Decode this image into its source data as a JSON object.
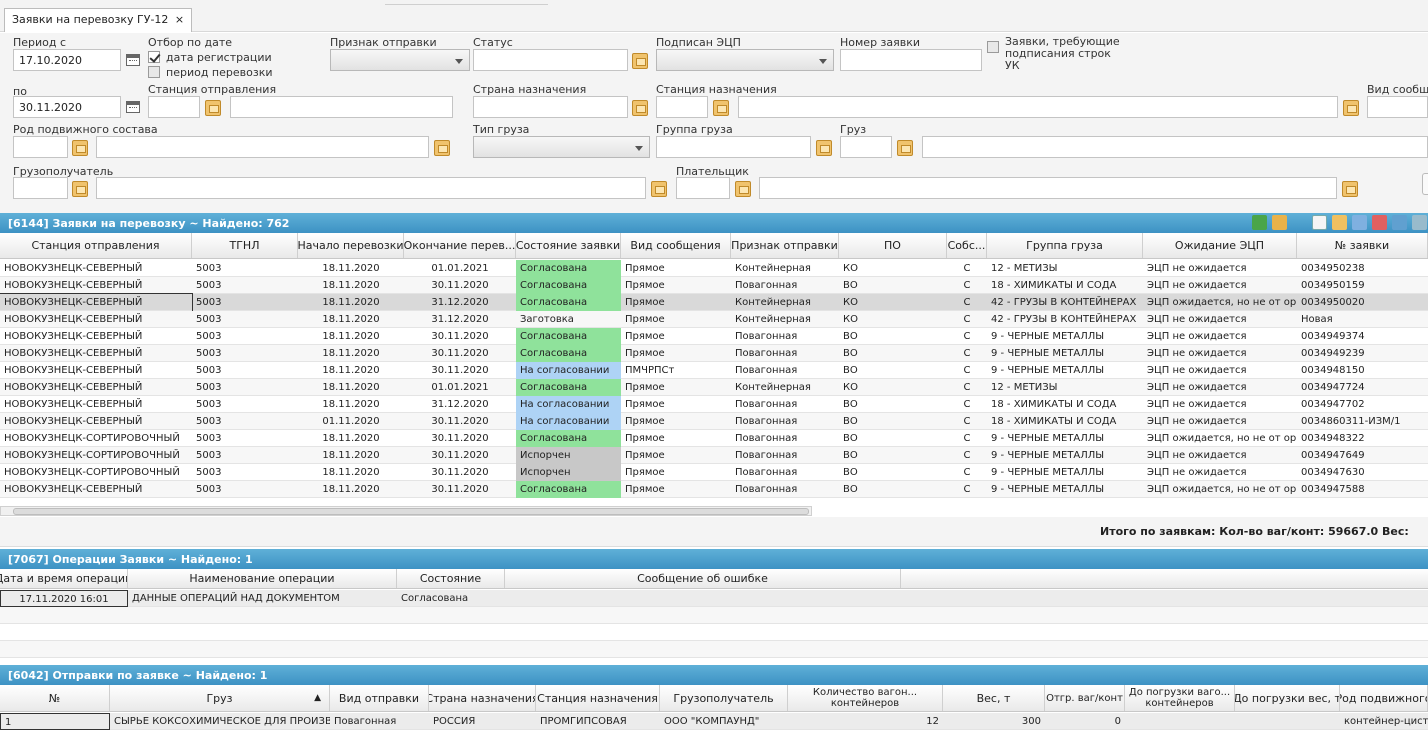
{
  "tab": {
    "title": "Заявки на перевозку ГУ-12",
    "close": "×"
  },
  "filters": {
    "period_from_label": "Период с",
    "period_from": "17.10.2020",
    "period_to_label": "по",
    "period_to": "30.11.2020",
    "date_filter_label": "Отбор по дате",
    "reg_date_label": "дата регистрации",
    "transport_period_label": "период перевозки",
    "send_sign_label": "Признак отправки",
    "status_label": "Статус",
    "signed_label": "Подписан ЭЦП",
    "number_label": "Номер заявки",
    "uk_sign_label": "Заявки, требующие подписания строк УК",
    "dep_station_label": "Станция отправления",
    "dest_country_label": "Страна назначения",
    "dest_station_label": "Станция назначения",
    "msg_type_label": "Вид сообщен",
    "rolling_stock_label": "Род подвижного состава",
    "cargo_type_label": "Тип груза",
    "cargo_group_label": "Группа груза",
    "cargo_label": "Груз",
    "consignee_label": "Грузополучатель",
    "payer_label": "Плательщик"
  },
  "main_grid": {
    "title": "[6144]  Заявки на перевозку ~ Найдено: 762",
    "columns": [
      "Станция отправления",
      "ТГНЛ",
      "Начало перевозки",
      "Окончание перев...",
      "Состояние заявки",
      "Вид сообщения",
      "Признак отправки",
      "ПО",
      "Собс...",
      "Группа груза",
      "Ожидание ЭЦП",
      "№ заявки"
    ],
    "rows": [
      [
        "НОВОКУЗНЕЦК-СЕВЕРНЫЙ",
        "5003",
        "18.11.2020",
        "01.01.2021",
        "Согласована",
        "Прямое",
        "Контейнерная",
        "КО",
        "С",
        "12 - МЕТИЗЫ",
        "ЭЦП не ожидается",
        "0034950238"
      ],
      [
        "НОВОКУЗНЕЦК-СЕВЕРНЫЙ",
        "5003",
        "18.11.2020",
        "30.11.2020",
        "Согласована",
        "Прямое",
        "Повагонная",
        "ВО",
        "С",
        "18 - ХИМИКАТЫ И СОДА",
        "ЭЦП не ожидается",
        "0034950159"
      ],
      [
        "НОВОКУЗНЕЦК-СЕВЕРНЫЙ",
        "5003",
        "18.11.2020",
        "31.12.2020",
        "Согласована",
        "Прямое",
        "Контейнерная",
        "КО",
        "С",
        "42 - ГРУЗЫ В КОНТЕЙНЕРАХ",
        "ЭЦП ожидается, но не от организац...",
        "0034950020"
      ],
      [
        "НОВОКУЗНЕЦК-СЕВЕРНЫЙ",
        "5003",
        "18.11.2020",
        "31.12.2020",
        "Заготовка",
        "Прямое",
        "Контейнерная",
        "КО",
        "С",
        "42 - ГРУЗЫ В КОНТЕЙНЕРАХ",
        "ЭЦП не ожидается",
        "Новая"
      ],
      [
        "НОВОКУЗНЕЦК-СЕВЕРНЫЙ",
        "5003",
        "18.11.2020",
        "30.11.2020",
        "Согласована",
        "Прямое",
        "Повагонная",
        "ВО",
        "С",
        "9 - ЧЕРНЫЕ МЕТАЛЛЫ",
        "ЭЦП не ожидается",
        "0034949374"
      ],
      [
        "НОВОКУЗНЕЦК-СЕВЕРНЫЙ",
        "5003",
        "18.11.2020",
        "30.11.2020",
        "Согласована",
        "Прямое",
        "Повагонная",
        "ВО",
        "С",
        "9 - ЧЕРНЫЕ МЕТАЛЛЫ",
        "ЭЦП не ожидается",
        "0034949239"
      ],
      [
        "НОВОКУЗНЕЦК-СЕВЕРНЫЙ",
        "5003",
        "18.11.2020",
        "30.11.2020",
        "На согласовании",
        "ПМЧРПСт",
        "Повагонная",
        "ВО",
        "С",
        "9 - ЧЕРНЫЕ МЕТАЛЛЫ",
        "ЭЦП не ожидается",
        "0034948150"
      ],
      [
        "НОВОКУЗНЕЦК-СЕВЕРНЫЙ",
        "5003",
        "18.11.2020",
        "01.01.2021",
        "Согласована",
        "Прямое",
        "Контейнерная",
        "КО",
        "С",
        "12 - МЕТИЗЫ",
        "ЭЦП не ожидается",
        "0034947724"
      ],
      [
        "НОВОКУЗНЕЦК-СЕВЕРНЫЙ",
        "5003",
        "18.11.2020",
        "31.12.2020",
        "На согласовании",
        "Прямое",
        "Повагонная",
        "ВО",
        "С",
        "18 - ХИМИКАТЫ И СОДА",
        "ЭЦП не ожидается",
        "0034947702"
      ],
      [
        "НОВОКУЗНЕЦК-СЕВЕРНЫЙ",
        "5003",
        "01.11.2020",
        "30.11.2020",
        "На согласовании",
        "Прямое",
        "Повагонная",
        "ВО",
        "С",
        "18 - ХИМИКАТЫ И СОДА",
        "ЭЦП не ожидается",
        "0034860311-ИЗМ/1"
      ],
      [
        "НОВОКУЗНЕЦК-СОРТИРОВОЧНЫЙ",
        "5003",
        "18.11.2020",
        "30.11.2020",
        "Согласована",
        "Прямое",
        "Повагонная",
        "ВО",
        "С",
        "9 - ЧЕРНЫЕ МЕТАЛЛЫ",
        "ЭЦП ожидается, но не от организац...",
        "0034948322"
      ],
      [
        "НОВОКУЗНЕЦК-СОРТИРОВОЧНЫЙ",
        "5003",
        "18.11.2020",
        "30.11.2020",
        "Испорчен",
        "Прямое",
        "Повагонная",
        "ВО",
        "С",
        "9 - ЧЕРНЫЕ МЕТАЛЛЫ",
        "ЭЦП не ожидается",
        "0034947649"
      ],
      [
        "НОВОКУЗНЕЦК-СОРТИРОВОЧНЫЙ",
        "5003",
        "18.11.2020",
        "30.11.2020",
        "Испорчен",
        "Прямое",
        "Повагонная",
        "ВО",
        "С",
        "9 - ЧЕРНЫЕ МЕТАЛЛЫ",
        "ЭЦП не ожидается",
        "0034947630"
      ],
      [
        "НОВОКУЗНЕЦК-СЕВЕРНЫЙ",
        "5003",
        "18.11.2020",
        "30.11.2020",
        "Согласована",
        "Прямое",
        "Повагонная",
        "ВО",
        "С",
        "9 - ЧЕРНЫЕ МЕТАЛЛЫ",
        "ЭЦП ожидается, но не от организац...",
        "0034947588"
      ]
    ],
    "totals": "Итого по заявкам:  Кол-во ваг/конт: 59667.0 Вес:"
  },
  "ops_grid": {
    "title": "[7067]  Операции Заявки ~ Найдено: 1",
    "columns": [
      "Дата и время операции",
      "Наименование операции",
      "Состояние",
      "Сообщение об ошибке"
    ],
    "rows": [
      [
        "17.11.2020 16:01",
        "ДАННЫЕ ОПЕРАЦИЙ НАД ДОКУМЕНТОМ",
        "Согласована",
        ""
      ]
    ]
  },
  "ship_grid": {
    "title": "[6042]  Отправки по заявке ~ Найдено: 1",
    "columns": [
      "№",
      "Груз",
      "Вид отправки",
      "Страна назначения",
      "Станция назначения",
      "Грузополучатель",
      "Количество вагон... контейнеров",
      "Вес, т",
      "Отгр. ваг/конт",
      "До погрузки ваго... контейнеров",
      "До погрузки вес, т",
      "Род подвижного"
    ],
    "sort_indicator": "▲",
    "rows": [
      [
        "1",
        "СЫРЬЕ КОКСОХИМИЧЕСКОЕ ДЛЯ ПРОИЗВ...",
        "Повагонная",
        "РОССИЯ",
        "ПРОМГИПСОВАЯ",
        "ООО \"КОМПАУНД\"",
        "12",
        "300",
        "0",
        "",
        "",
        "контейнер-цистер"
      ]
    ]
  }
}
